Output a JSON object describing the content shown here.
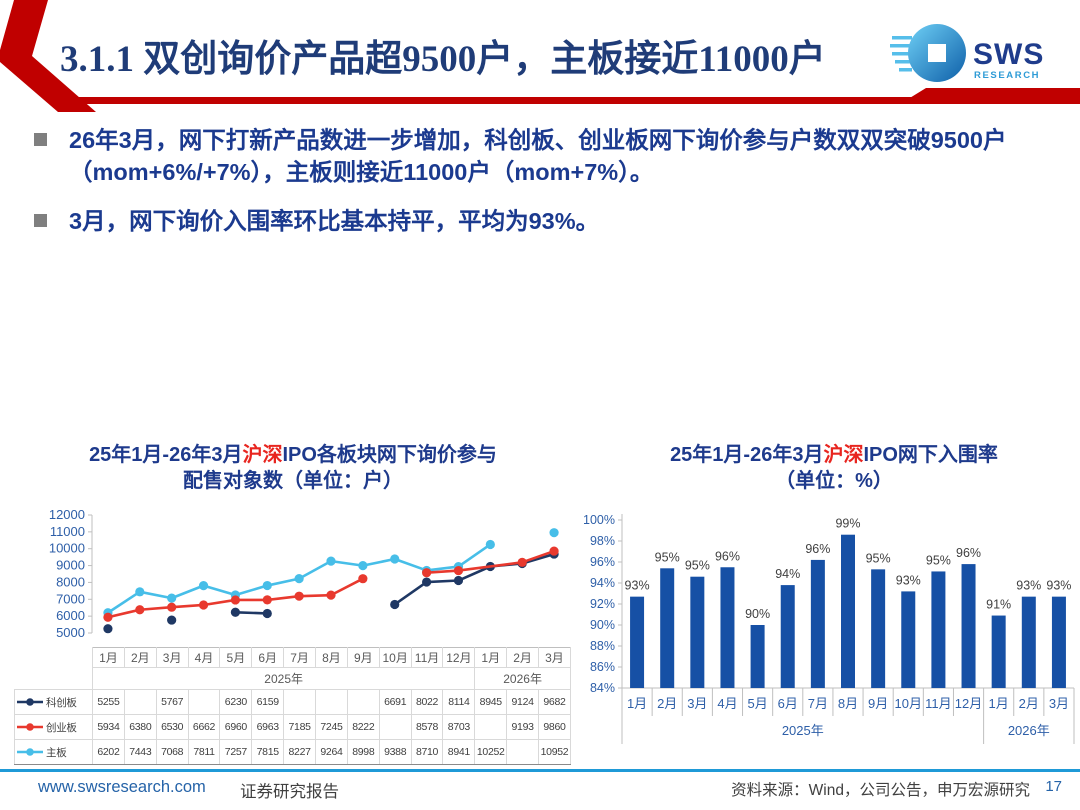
{
  "slide": {
    "header": {
      "title": "3.1.1 双创询价产品超9500户，主板接近11000户"
    },
    "logo": {
      "name": "SWS",
      "sub": "RESEARCH"
    },
    "bullets": [
      "26年3月，网下打新产品数进一步增加，科创板、创业板网下询价参与户数双双突破9500户（mom+6%/+7%），主板则接近11000户（mom+7%）。",
      "3月，网下询价入围率环比基本持平，平均为93%。"
    ],
    "footer": {
      "website": "www.swsresearch.com",
      "report_type": "证券研究报告",
      "source": "资料来源：Wind，公司公告，申万宏源研究",
      "page": "17"
    }
  },
  "chart_data": [
    {
      "type": "line",
      "title": "25年1月-26年3月沪深IPO各板块网下询价参与配售对象数（单位：户）",
      "title_parts": {
        "prefix": "25年1月-26年3月",
        "highlight": "沪深",
        "suffix": "IPO各板块网下询价参与",
        "line2": "配售对象数（单位：户）"
      },
      "categories": [
        "1月",
        "2月",
        "3月",
        "4月",
        "5月",
        "6月",
        "7月",
        "8月",
        "9月",
        "10月",
        "11月",
        "12月",
        "1月",
        "2月",
        "3月"
      ],
      "year_groups": [
        {
          "label": "2025年",
          "span": 12
        },
        {
          "label": "2026年",
          "span": 3
        }
      ],
      "ylim": [
        5000,
        12000
      ],
      "ytick_step": 1000,
      "grid": false,
      "legend_position": "table-left",
      "series": [
        {
          "name": "科创板",
          "color": "#1F3864",
          "values": [
            5255,
            null,
            5767,
            null,
            6230,
            6159,
            null,
            null,
            null,
            6691,
            8022,
            8114,
            8945,
            9124,
            9682
          ],
          "bridges": []
        },
        {
          "name": "创业板",
          "color": "#E8392E",
          "values": [
            5934,
            6380,
            6530,
            6662,
            6960,
            6963,
            7185,
            7245,
            8222,
            null,
            8578,
            8703,
            null,
            9193,
            9860
          ],
          "bridges": [
            [
              11,
              13
            ]
          ]
        },
        {
          "name": "主板",
          "color": "#47BEE8",
          "values": [
            6202,
            7443,
            7068,
            7811,
            7257,
            7815,
            8227,
            9264,
            8998,
            9388,
            8710,
            8941,
            10252,
            null,
            10952
          ],
          "bridges": []
        }
      ]
    },
    {
      "type": "bar",
      "title": "25年1月-26年3月沪深IPO网下入围率（单位：%）",
      "title_parts": {
        "prefix": "25年1月-26年3月",
        "highlight": "沪深",
        "suffix": "IPO网下入围率",
        "line2": "（单位：%）"
      },
      "categories": [
        "1月",
        "2月",
        "3月",
        "4月",
        "5月",
        "6月",
        "7月",
        "8月",
        "9月",
        "10月",
        "11月",
        "12月",
        "1月",
        "2月",
        "3月"
      ],
      "year_groups": [
        {
          "label": "2025年",
          "span": 12
        },
        {
          "label": "2026年",
          "span": 3
        }
      ],
      "values": [
        92.7,
        95.4,
        94.6,
        95.5,
        90.0,
        93.8,
        96.2,
        98.6,
        95.3,
        93.2,
        95.1,
        95.8,
        90.9,
        92.7,
        92.7
      ],
      "labels": [
        "93%",
        "95%",
        "95%",
        "96%",
        "90%",
        "94%",
        "96%",
        "99%",
        "95%",
        "93%",
        "95%",
        "96%",
        "91%",
        "93%",
        "93%"
      ],
      "ylim": [
        84,
        100
      ],
      "ytick_step": 2,
      "grid": false,
      "bar_color": "#1650A5"
    }
  ],
  "colors": {
    "accent_red": "#C00000",
    "title_navy": "#1F3C78",
    "bullet_navy": "#1B3A8F",
    "chart_title_navy": "#1E3A8C",
    "highlight_red": "#E8251F",
    "bar_blue": "#1650A5",
    "line_navy": "#1F3864",
    "line_red": "#E8392E",
    "line_cyan": "#47BEE8",
    "axis_label_blue": "#2E5FA8",
    "gray_text": "#595959",
    "footer_divider_blue": "#1F9AD7",
    "footer_link_blue": "#2563A8"
  }
}
